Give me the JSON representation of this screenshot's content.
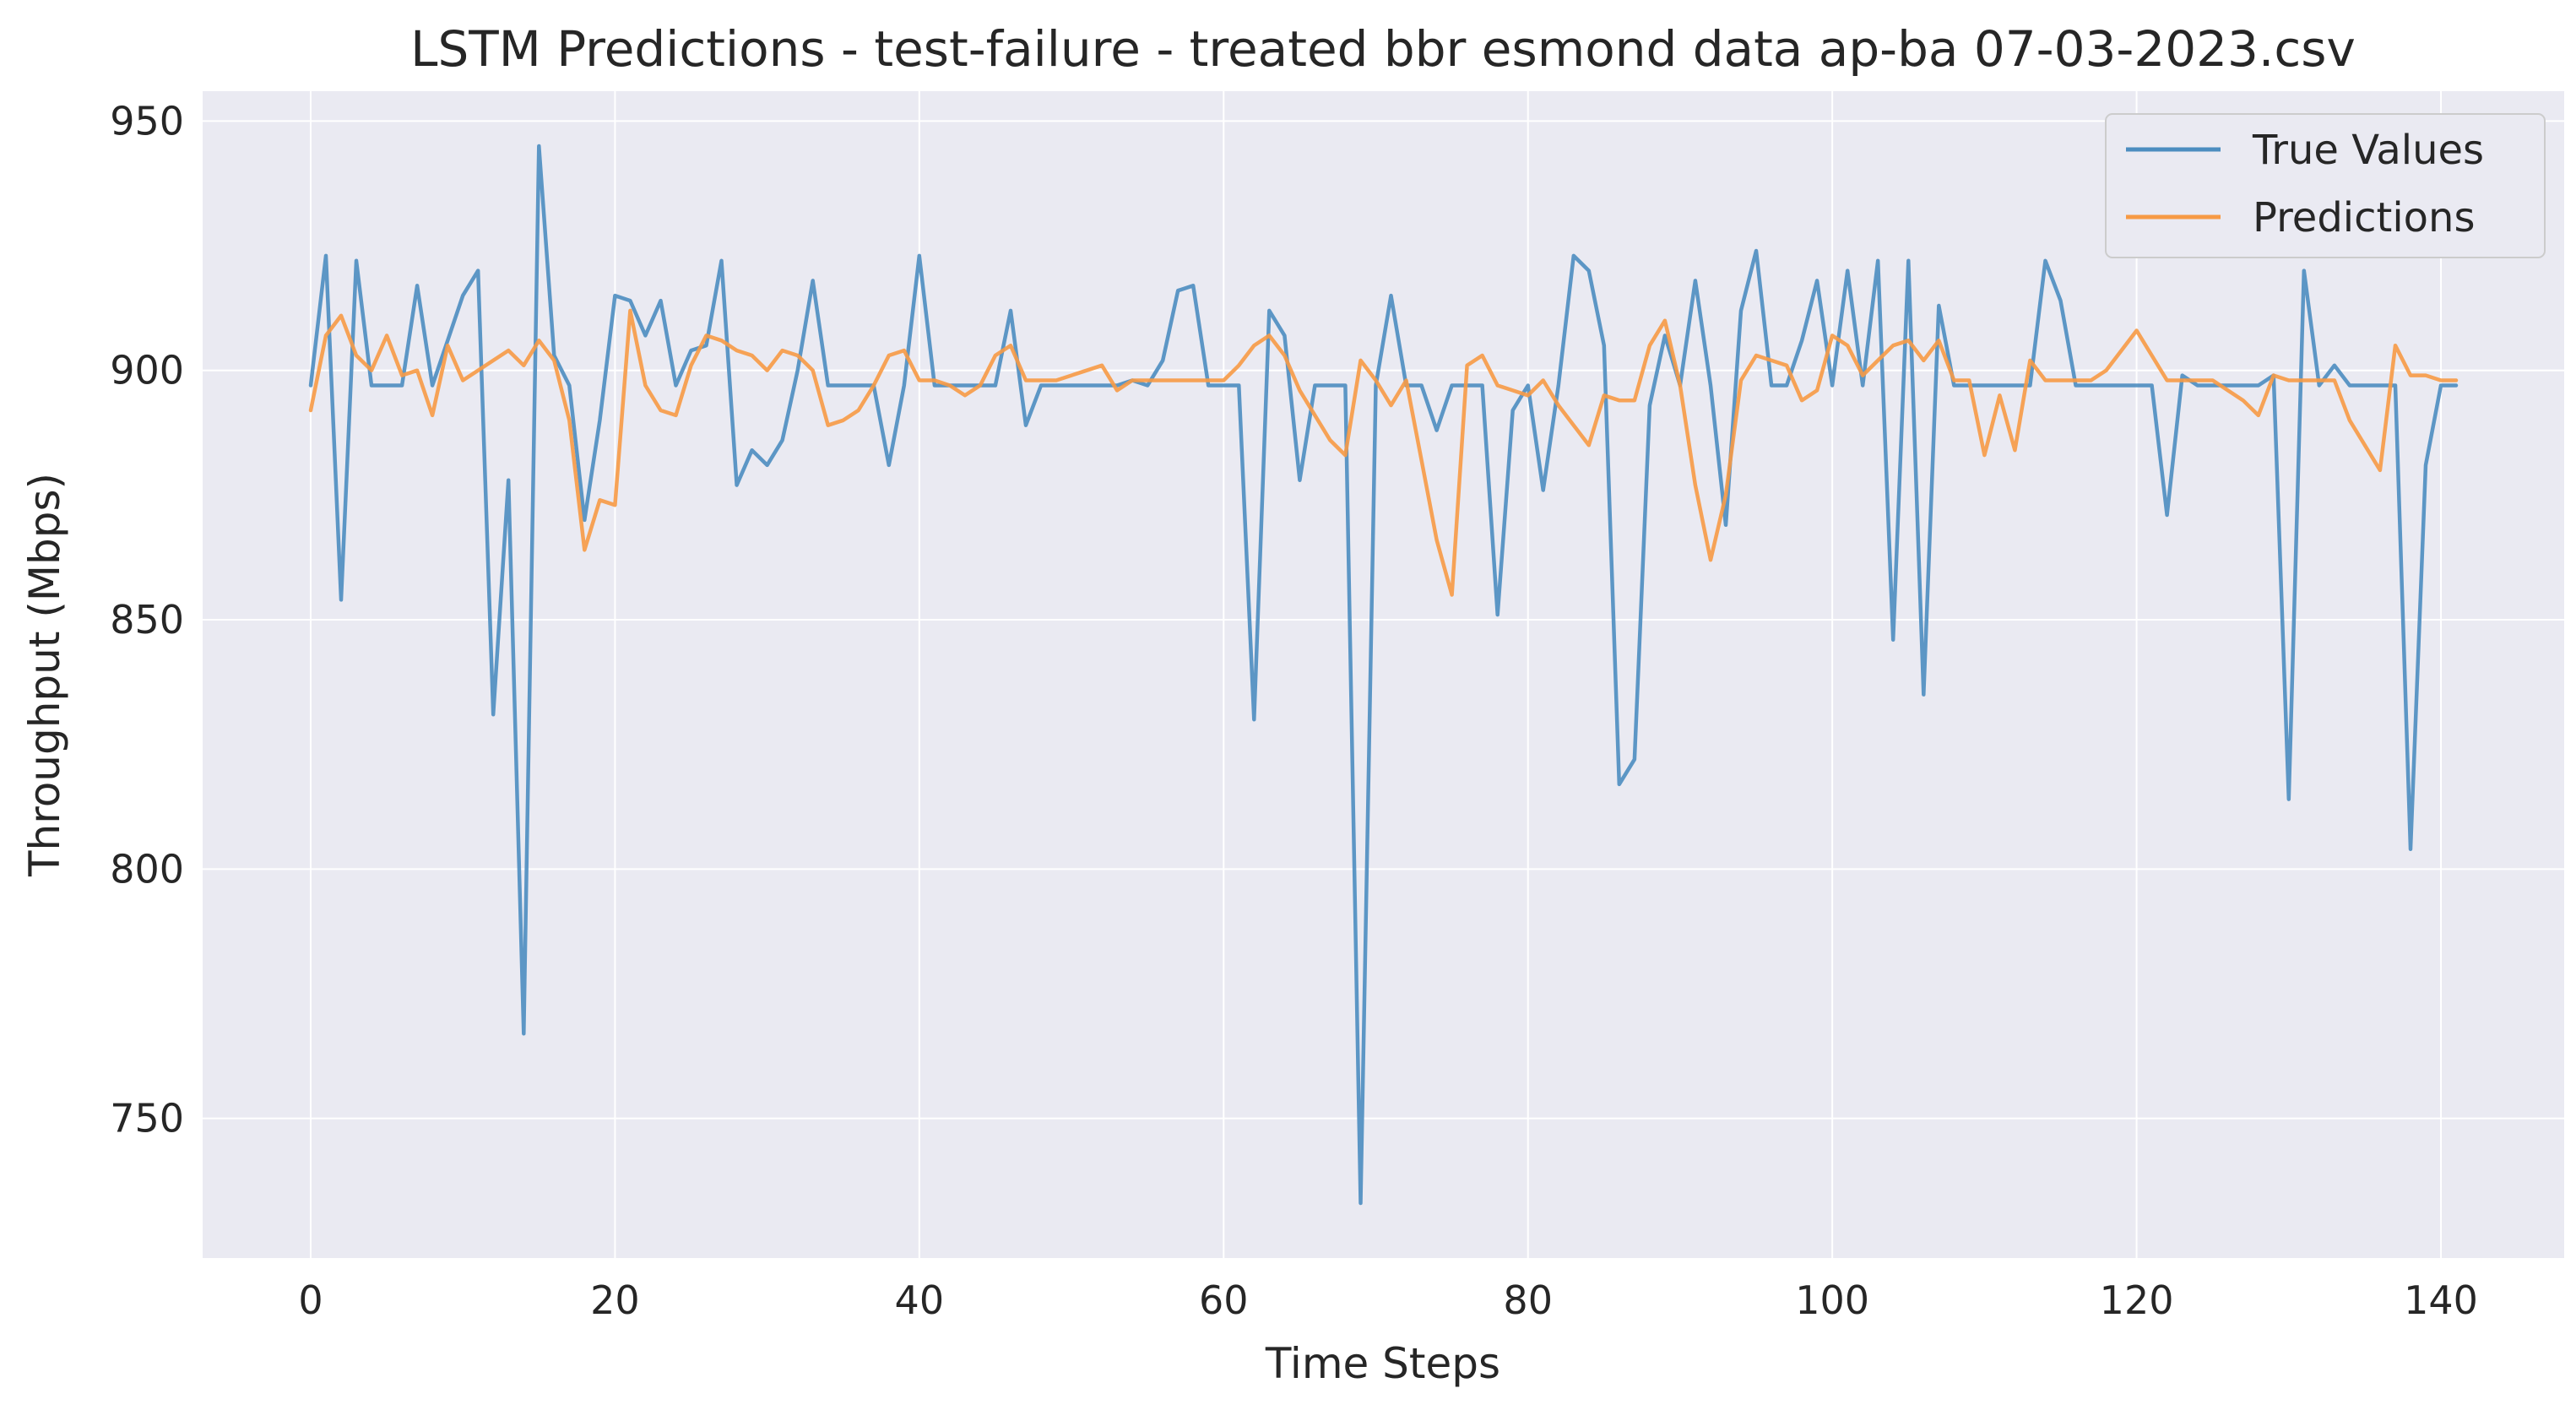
{
  "chart_data": {
    "type": "line",
    "title": "LSTM Predictions - test-failure - treated bbr esmond data ap-ba 07-03-2023.csv",
    "xlabel": "Time Steps",
    "ylabel": "Throughput (Mbps)",
    "xlim": [
      -7.1,
      148.1
    ],
    "ylim": [
      722,
      956
    ],
    "xticks": [
      0,
      20,
      40,
      60,
      80,
      100,
      120,
      140
    ],
    "yticks": [
      750,
      800,
      850,
      900,
      950
    ],
    "grid": true,
    "legend_position": "upper right",
    "colors": {
      "plot_bg": "#eaeaf2",
      "grid": "#ffffff",
      "true_values": "#4c8dc0",
      "predictions": "#f79a45"
    },
    "series": [
      {
        "name": "True Values",
        "color": "#4c8dc0",
        "values": [
          897,
          923,
          854,
          922,
          897,
          897,
          897,
          917,
          897,
          906,
          915,
          920,
          831,
          878,
          767,
          945,
          903,
          897,
          870,
          890,
          915,
          914,
          907,
          914,
          897,
          904,
          905,
          922,
          877,
          884,
          881,
          886,
          900,
          918,
          897,
          897,
          897,
          897,
          881,
          897,
          923,
          897,
          897,
          897,
          897,
          897,
          912,
          889,
          897,
          897,
          897,
          897,
          897,
          897,
          898,
          897,
          902,
          916,
          917,
          897,
          897,
          897,
          830,
          912,
          907,
          878,
          897,
          897,
          897,
          733,
          897,
          915,
          897,
          897,
          888,
          897,
          897,
          897,
          851,
          892,
          897,
          876,
          897,
          923,
          920,
          905,
          817,
          822,
          893,
          907,
          897,
          918,
          897,
          869,
          912,
          924,
          897,
          897,
          906,
          918,
          897,
          920,
          897,
          922,
          846,
          922,
          835,
          913,
          897,
          897,
          897,
          897,
          897,
          897,
          922,
          914,
          897,
          897,
          897,
          897,
          897,
          897,
          871,
          899,
          897,
          897,
          897,
          897,
          897,
          899,
          814,
          920,
          897,
          901,
          897,
          897,
          897,
          897,
          804,
          881,
          897,
          897
        ]
      },
      {
        "name": "Predictions",
        "color": "#f79a45",
        "values": [
          892,
          907,
          911,
          903,
          900,
          907,
          899,
          900,
          891,
          905,
          898,
          900,
          902,
          904,
          901,
          906,
          902,
          890,
          864,
          874,
          873,
          912,
          897,
          892,
          891,
          901,
          907,
          906,
          904,
          903,
          900,
          904,
          903,
          900,
          889,
          890,
          892,
          897,
          903,
          904,
          898,
          898,
          897,
          895,
          897,
          903,
          905,
          898,
          898,
          898,
          899,
          900,
          901,
          896,
          898,
          898,
          898,
          898,
          898,
          898,
          898,
          901,
          905,
          907,
          903,
          896,
          891,
          886,
          883,
          902,
          898,
          893,
          898,
          882,
          866,
          855,
          901,
          903,
          897,
          896,
          895,
          898,
          893,
          889,
          885,
          895,
          894,
          894,
          905,
          910,
          897,
          877,
          862,
          875,
          898,
          903,
          902,
          901,
          894,
          896,
          907,
          905,
          899,
          902,
          905,
          906,
          902,
          906,
          898,
          898,
          883,
          895,
          884,
          902,
          898,
          898,
          898,
          898,
          900,
          904,
          908,
          903,
          898,
          898,
          898,
          898,
          896,
          894,
          891,
          899,
          898,
          898,
          898,
          898,
          890,
          885,
          880,
          905,
          899,
          899,
          898,
          898
        ]
      }
    ]
  }
}
